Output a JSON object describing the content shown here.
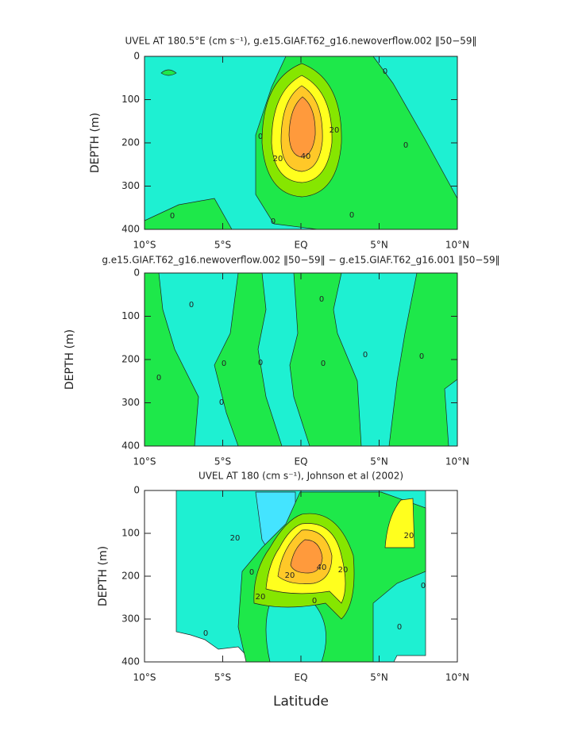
{
  "chart_data": [
    {
      "type": "contour",
      "title": "UVEL AT 180.5°E (cm s⁻¹), g.e15.GIAF.T62_g16.newoverflow.002 ‖50−59‖",
      "ylabel": "DEPTH (m)",
      "xlim": [
        -10,
        10
      ],
      "xticks": [
        {
          "value": -10,
          "label": "10°S"
        },
        {
          "value": -5,
          "label": "5°S"
        },
        {
          "value": 0,
          "label": "EQ"
        },
        {
          "value": 5,
          "label": "5°N"
        },
        {
          "value": 10,
          "label": "10°N"
        }
      ],
      "ylim": [
        400,
        0
      ],
      "yticks": [
        0,
        100,
        200,
        300,
        400
      ],
      "contour_labels": [
        0,
        0,
        0,
        0,
        0,
        0,
        20,
        20,
        40
      ]
    },
    {
      "type": "contour",
      "title": "g.e15.GIAF.T62_g16.newoverflow.002 ‖50−59‖ − g.e15.GIAF.T62_g16.001 ‖50−59‖",
      "ylabel": "DEPTH (m)",
      "xlim": [
        -10,
        10
      ],
      "xticks": [
        {
          "value": -10,
          "label": "10°S"
        },
        {
          "value": -5,
          "label": "5°S"
        },
        {
          "value": 0,
          "label": "EQ"
        },
        {
          "value": 5,
          "label": "5°N"
        },
        {
          "value": 10,
          "label": "10°N"
        }
      ],
      "ylim": [
        400,
        0
      ],
      "yticks": [
        0,
        100,
        200,
        300,
        400
      ],
      "contour_labels": [
        0,
        0,
        0,
        0,
        0,
        0,
        0,
        0,
        0
      ]
    },
    {
      "type": "contour",
      "title": "UVEL AT 180 (cm s⁻¹), Johnson et al (2002)",
      "ylabel": "DEPTH (m)",
      "xlabel": "Latitude",
      "xlim": [
        -10,
        10
      ],
      "xticks": [
        {
          "value": -10,
          "label": "10°S"
        },
        {
          "value": -5,
          "label": "5°S"
        },
        {
          "value": 0,
          "label": "EQ"
        },
        {
          "value": 5,
          "label": "5°N"
        },
        {
          "value": 10,
          "label": "10°N"
        }
      ],
      "ylim": [
        400,
        0
      ],
      "yticks": [
        0,
        100,
        200,
        300,
        400
      ],
      "contour_labels": [
        20,
        20,
        40,
        20,
        20,
        0,
        0,
        20,
        0,
        0,
        0
      ]
    }
  ]
}
